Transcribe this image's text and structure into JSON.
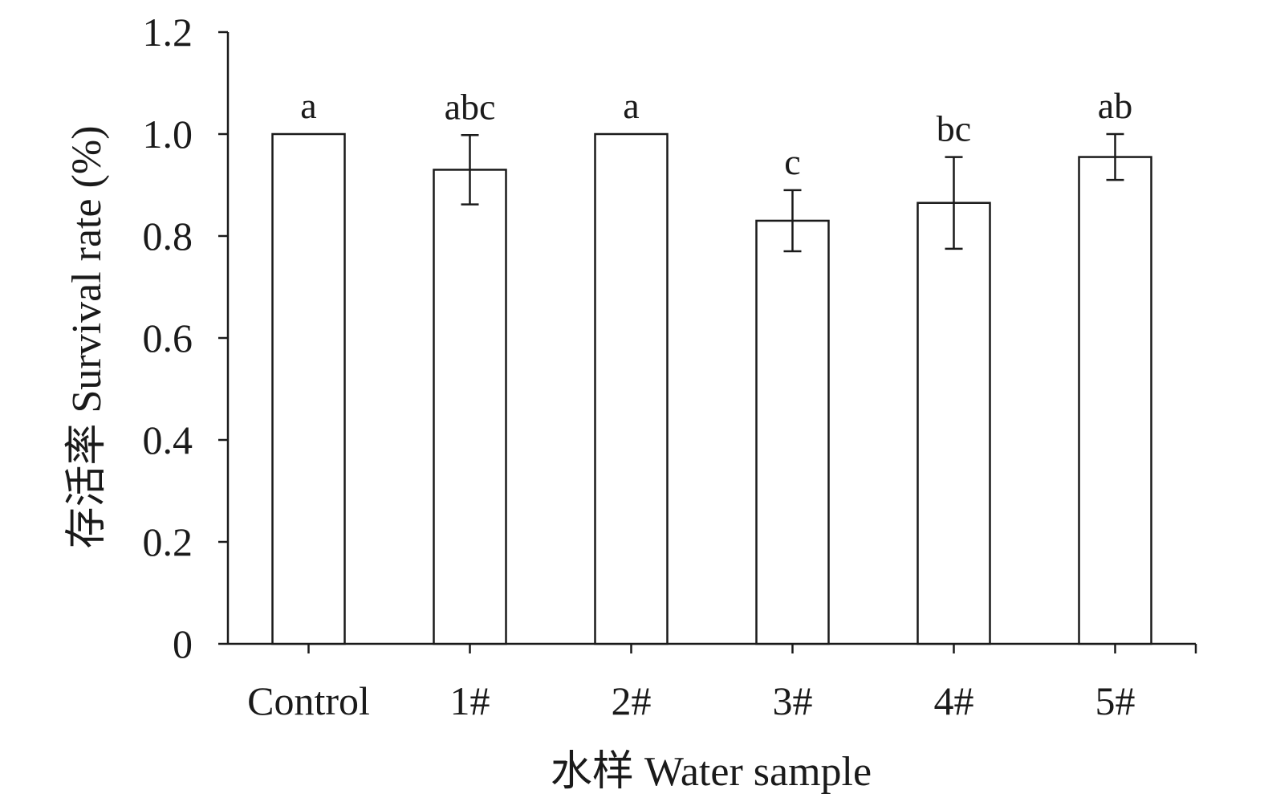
{
  "chart_data": {
    "type": "bar",
    "categories": [
      "Control",
      "1#",
      "2#",
      "3#",
      "4#",
      "5#"
    ],
    "values": [
      1.0,
      0.93,
      1.0,
      0.83,
      0.865,
      0.955
    ],
    "error": [
      0.0,
      0.068,
      0.0,
      0.06,
      0.09,
      0.045
    ],
    "significance": [
      "a",
      "abc",
      "a",
      "c",
      "bc",
      "ab"
    ],
    "xlabel": "水样 Water sample",
    "ylabel": "存活率 Survival rate (%)",
    "ylim": [
      0,
      1.2
    ],
    "yticks": [
      "0",
      "0.2",
      "0.4",
      "0.6",
      "0.8",
      "1.0",
      "1.2"
    ],
    "bar_fill": "#ffffff",
    "bar_stroke": "#1a1a1a",
    "grid": false,
    "legend": "none"
  }
}
